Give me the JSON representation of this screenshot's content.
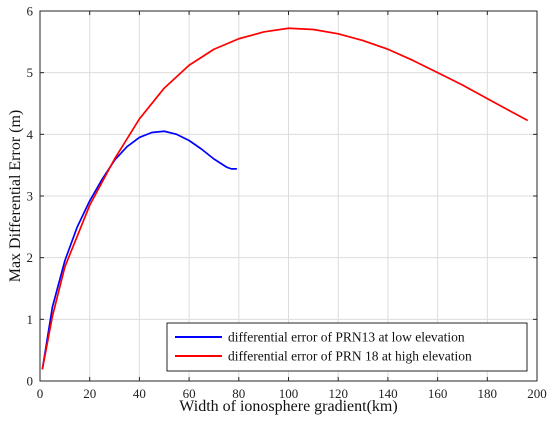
{
  "chart_data": {
    "type": "line",
    "title": "",
    "xlabel": "Width of ionosphere gradient(km)",
    "ylabel": "Max Differential Error (m)",
    "xlim": [
      0,
      200
    ],
    "ylim": [
      0,
      6
    ],
    "xticks": [
      0,
      20,
      40,
      60,
      80,
      100,
      120,
      140,
      160,
      180,
      200
    ],
    "yticks": [
      0,
      1,
      2,
      3,
      4,
      5,
      6
    ],
    "grid": true,
    "legend": "bottom-right",
    "series": [
      {
        "name": "differential error of PRN13 at low elevation",
        "color": "#0000ff",
        "x": [
          1,
          5,
          10,
          15,
          20,
          25,
          30,
          35,
          40,
          45,
          50,
          55,
          60,
          65,
          70,
          75,
          77,
          79
        ],
        "y": [
          0.2,
          1.2,
          1.95,
          2.5,
          2.92,
          3.27,
          3.58,
          3.8,
          3.95,
          4.03,
          4.05,
          4.0,
          3.9,
          3.76,
          3.6,
          3.47,
          3.44,
          3.44
        ]
      },
      {
        "name": "differential error of PRN 18 at high elevation",
        "color": "#ff0000",
        "x": [
          1,
          5,
          10,
          20,
          30,
          40,
          50,
          60,
          70,
          80,
          90,
          100,
          110,
          120,
          130,
          140,
          150,
          160,
          170,
          180,
          190,
          196
        ],
        "y": [
          0.2,
          1.05,
          1.85,
          2.85,
          3.6,
          4.25,
          4.75,
          5.12,
          5.38,
          5.55,
          5.66,
          5.72,
          5.7,
          5.63,
          5.52,
          5.38,
          5.2,
          5.0,
          4.8,
          4.58,
          4.36,
          4.23
        ]
      }
    ]
  }
}
